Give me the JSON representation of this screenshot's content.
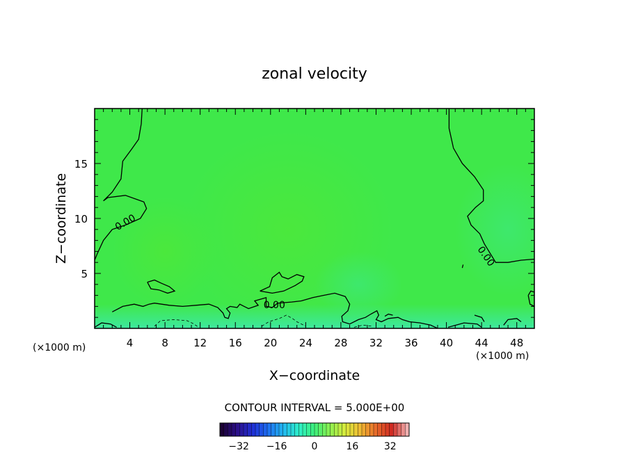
{
  "chart_data": {
    "type": "heatmap",
    "title": "zonal velocity",
    "xlabel": "X−coordinate",
    "ylabel": "Z−coordinate",
    "x_unit_left": "(×1000 m)",
    "x_unit_right": "(×1000 m)",
    "xlim": [
      0,
      50
    ],
    "ylim": [
      0,
      20
    ],
    "x_ticks": [
      4,
      8,
      12,
      16,
      20,
      24,
      28,
      32,
      36,
      40,
      44,
      48
    ],
    "y_ticks": [
      5,
      10,
      15
    ],
    "contour_interval_text": "CONTOUR INTERVAL = 5.000E+00",
    "contour_labels": [
      "0.00",
      "0.00",
      "0.00"
    ],
    "colorbar": {
      "range": [
        -40,
        40
      ],
      "ticks": [
        -32,
        -16,
        0,
        16,
        32
      ],
      "colors": [
        "#1a0033",
        "#2b0f8a",
        "#1f2fd6",
        "#1e6ff0",
        "#22b8f0",
        "#2ef0c8",
        "#3cf07a",
        "#8df050",
        "#d8ea3c",
        "#f0b832",
        "#e86a2a",
        "#d02a22",
        "#f0b0b0"
      ]
    },
    "field": {
      "background_color": "#3fe84a",
      "near_surface_color": "#3ee8a0",
      "upper_color": "#48e840"
    }
  }
}
